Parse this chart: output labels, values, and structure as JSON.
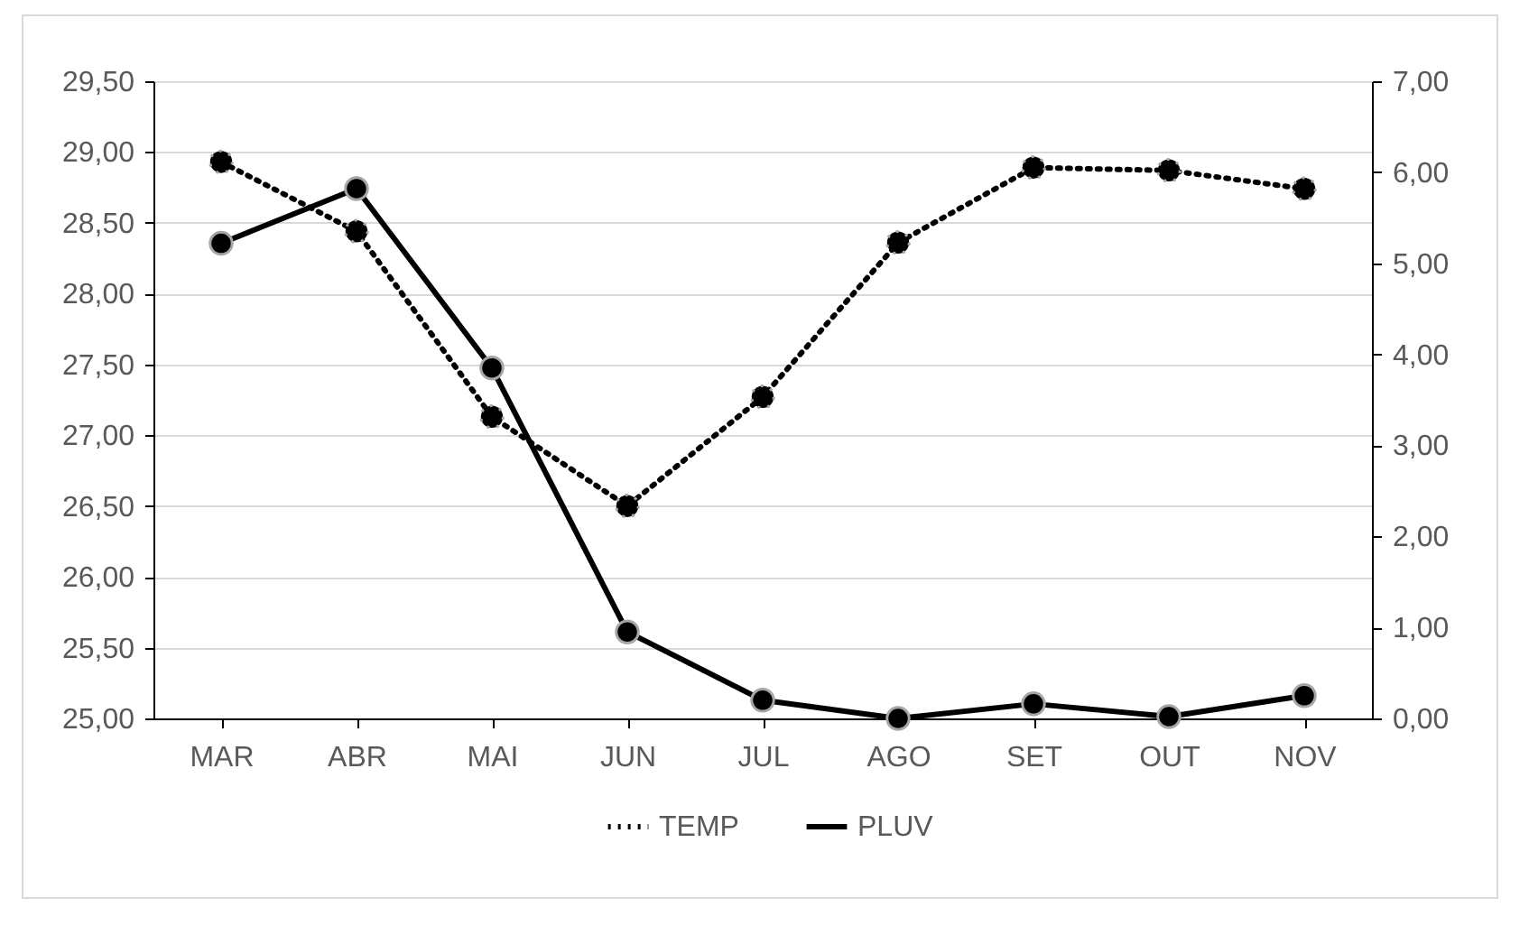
{
  "chart_data": {
    "type": "line",
    "categories": [
      "MAR",
      "ABR",
      "MAI",
      "JUN",
      "JUL",
      "AGO",
      "SET",
      "OUT",
      "NOV"
    ],
    "series": [
      {
        "name": "TEMP",
        "color": "#000000",
        "line_style": "dotted",
        "values": [
          28.93,
          28.44,
          27.13,
          26.5,
          27.27,
          28.36,
          28.89,
          28.87,
          28.74
        ]
      },
      {
        "name": "PLUV",
        "color": "#000000",
        "line_style": "solid",
        "axis": "y2",
        "values": [
          5.22,
          5.82,
          3.85,
          0.95,
          0.2,
          0.0,
          0.16,
          0.02,
          0.25
        ]
      }
    ],
    "ylim": [
      25,
      29.5
    ],
    "yticks": [
      {
        "value": 25,
        "label": "25,00"
      },
      {
        "value": 25.5,
        "label": "25,50"
      },
      {
        "value": 26,
        "label": "26,00"
      },
      {
        "value": 26.5,
        "label": "26,50"
      },
      {
        "value": 27,
        "label": "27,00"
      },
      {
        "value": 27.5,
        "label": "27,50"
      },
      {
        "value": 28,
        "label": "28,00"
      },
      {
        "value": 28.5,
        "label": "28,50"
      },
      {
        "value": 29,
        "label": "29,00"
      },
      {
        "value": 29.5,
        "label": "29,50"
      }
    ],
    "y2lim": [
      0,
      7
    ],
    "y2ticks": [
      {
        "value": 0,
        "label": "0,00"
      },
      {
        "value": 1,
        "label": "1,00"
      },
      {
        "value": 2,
        "label": "2,00"
      },
      {
        "value": 3,
        "label": "3,00"
      },
      {
        "value": 4,
        "label": "4,00"
      },
      {
        "value": 5,
        "label": "5,00"
      },
      {
        "value": 6,
        "label": "6,00"
      },
      {
        "value": 7,
        "label": "7,00"
      }
    ],
    "grid": "y",
    "legend": "bottom",
    "marker": "circle"
  }
}
